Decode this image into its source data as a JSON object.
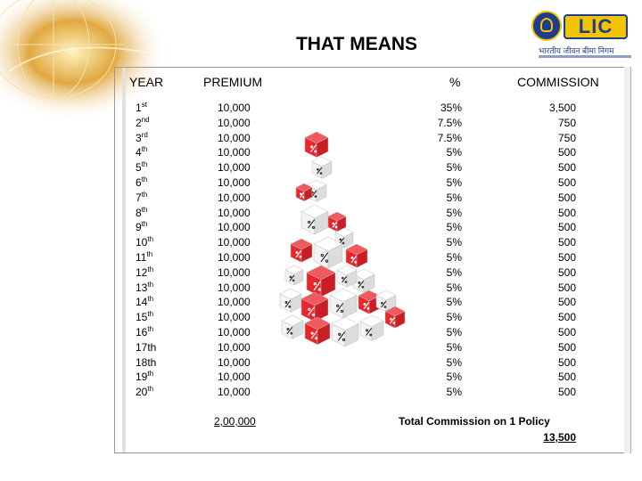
{
  "title": "THAT MEANS",
  "logo": {
    "brand": "LIC",
    "hindi": "भारतीय जीवन बीमा निगम"
  },
  "headers": {
    "year": "YEAR",
    "premium": "PREMIUM",
    "percent": "%",
    "commission": "COMMISSION"
  },
  "rows": [
    {
      "year_num": "1",
      "year_suffix": "st",
      "premium": "10,000",
      "percent": "35%",
      "commission": "3,500"
    },
    {
      "year_num": "2",
      "year_suffix": "nd",
      "premium": "10,000",
      "percent": "7.5%",
      "commission": "750"
    },
    {
      "year_num": "3",
      "year_suffix": "rd",
      "premium": "10,000",
      "percent": "7.5%",
      "commission": "750"
    },
    {
      "year_num": "4",
      "year_suffix": "th",
      "premium": "10,000",
      "percent": "5%",
      "commission": "500"
    },
    {
      "year_num": "5",
      "year_suffix": "th",
      "premium": "10,000",
      "percent": "5%",
      "commission": "500"
    },
    {
      "year_num": "6",
      "year_suffix": "th",
      "premium": "10,000",
      "percent": "5%",
      "commission": "500"
    },
    {
      "year_num": "7",
      "year_suffix": "th",
      "premium": "10,000",
      "percent": "5%",
      "commission": "500"
    },
    {
      "year_num": "8",
      "year_suffix": "th",
      "premium": "10,000",
      "percent": "5%",
      "commission": "500"
    },
    {
      "year_num": "9",
      "year_suffix": "th",
      "premium": "10,000",
      "percent": "5%",
      "commission": "500"
    },
    {
      "year_num": "10",
      "year_suffix": "th",
      "premium": "10,000",
      "percent": "5%",
      "commission": "500"
    },
    {
      "year_num": "11",
      "year_suffix": "th",
      "premium": "10,000",
      "percent": "5%",
      "commission": "500"
    },
    {
      "year_num": "12",
      "year_suffix": "th",
      "premium": "10,000",
      "percent": "5%",
      "commission": "500"
    },
    {
      "year_num": "13",
      "year_suffix": "th",
      "premium": "10,000",
      "percent": "5%",
      "commission": "500"
    },
    {
      "year_num": "14",
      "year_suffix": "th",
      "premium": "10,000",
      "percent": "5%",
      "commission": "500"
    },
    {
      "year_num": "15",
      "year_suffix": "th",
      "premium": "10,000",
      "percent": "5%",
      "commission": "500"
    },
    {
      "year_num": "16",
      "year_suffix": "th",
      "premium": "10,000",
      "percent": "5%",
      "commission": "500"
    },
    {
      "year_num": "17th",
      "year_suffix": "",
      "premium": "10,000",
      "percent": "5%",
      "commission": "500"
    },
    {
      "year_num": "18th",
      "year_suffix": "",
      "premium": "10,000",
      "percent": "5%",
      "commission": "500"
    },
    {
      "year_num": "19",
      "year_suffix": "th",
      "premium": "10,000",
      "percent": "5%",
      "commission": "500"
    },
    {
      "year_num": "20",
      "year_suffix": "th",
      "premium": "10,000",
      "percent": "5%",
      "commission": "500"
    }
  ],
  "totals": {
    "premium": "2,00,000",
    "commission_label": "Total Commission on 1 Policy",
    "commission_value": "13,500"
  },
  "colors": {
    "cube_red": "#e8262c",
    "cube_white": "#f4f4f4",
    "logo_blue": "#1e3d8f",
    "logo_yellow": "#f2c300",
    "globe": "#d79a2a"
  }
}
